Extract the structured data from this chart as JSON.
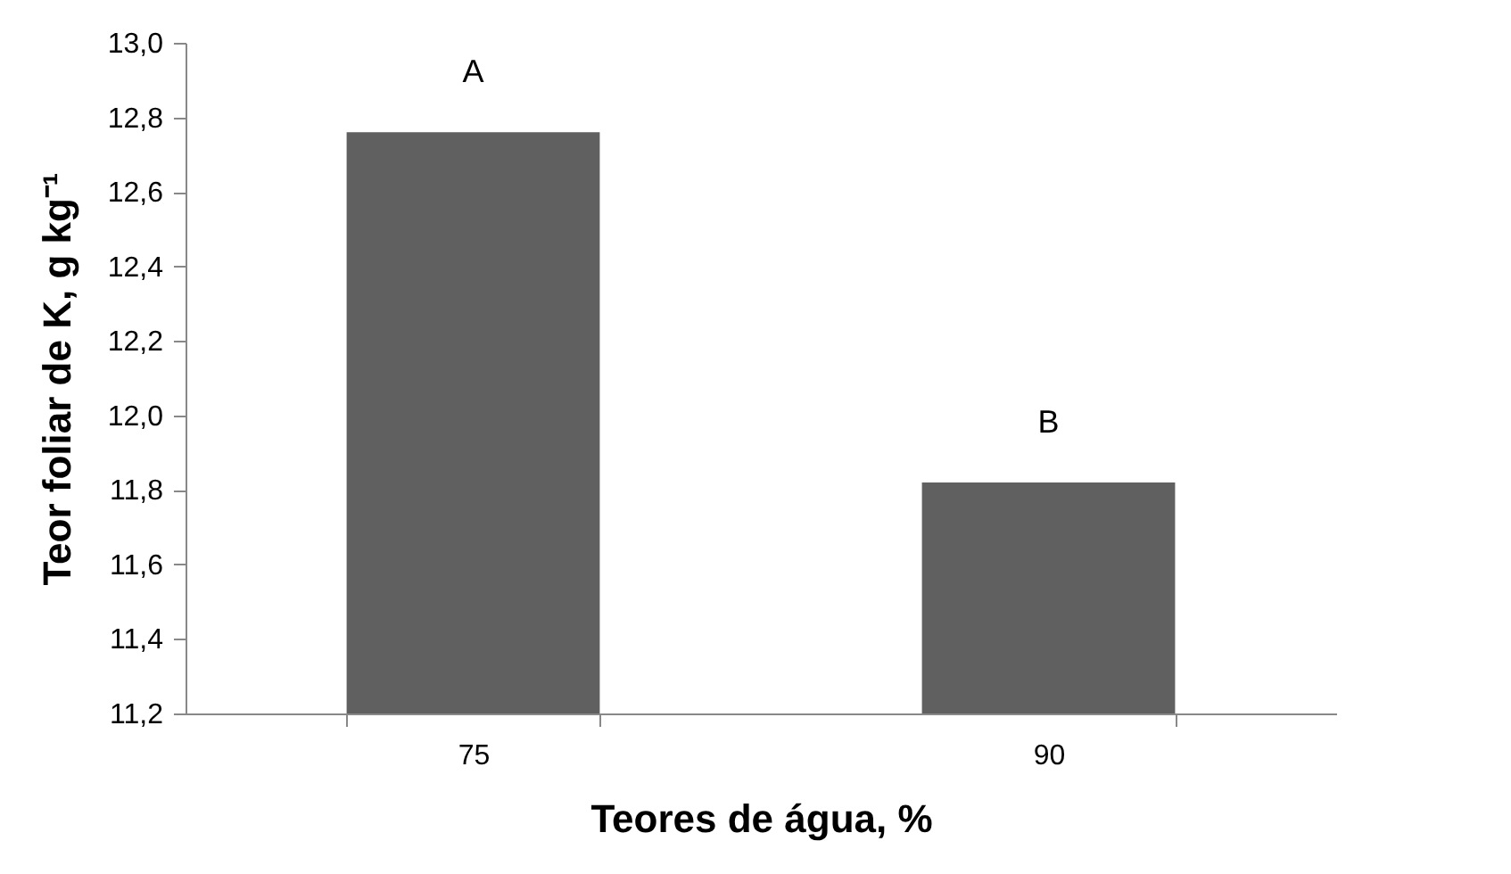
{
  "chart_data": {
    "type": "bar",
    "xlabel": "Teores de água, %",
    "ylabel": "Teor foliar de K, g kg⁻¹",
    "categories": [
      "75",
      "90"
    ],
    "values": [
      12.76,
      11.82
    ],
    "color": "#606060",
    "ylim": [
      11.2,
      13.0
    ],
    "yticks": [
      {
        "value": 11.2,
        "label": "11,2"
      },
      {
        "value": 11.4,
        "label": "11,4"
      },
      {
        "value": 11.6,
        "label": "11,6"
      },
      {
        "value": 11.8,
        "label": "11,8"
      },
      {
        "value": 12.0,
        "label": "12,0"
      },
      {
        "value": 12.2,
        "label": "12,2"
      },
      {
        "value": 12.4,
        "label": "12,4"
      },
      {
        "value": 12.6,
        "label": "12,6"
      },
      {
        "value": 12.8,
        "label": "12,8"
      },
      {
        "value": 13.0,
        "label": "13,0"
      }
    ],
    "annotations": [
      {
        "text": "A",
        "x": "75",
        "y": 12.76
      },
      {
        "text": "B",
        "x": "90",
        "y": 11.82
      }
    ],
    "grid": false
  }
}
